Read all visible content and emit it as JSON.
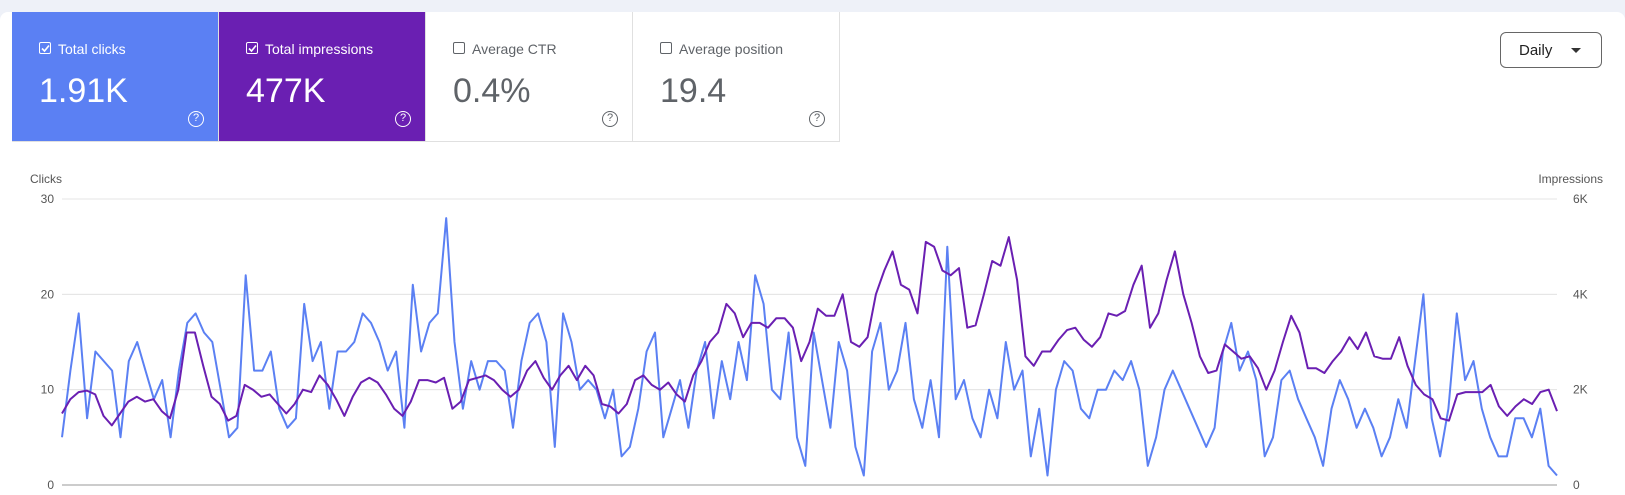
{
  "cards": [
    {
      "label": "Total clicks",
      "value": "1.91K",
      "checked": true,
      "color": "#5b80f3"
    },
    {
      "label": "Total impressions",
      "value": "477K",
      "checked": true,
      "color": "#6a1fb2"
    },
    {
      "label": "Average CTR",
      "value": "0.4%",
      "checked": false,
      "color": "#ffffff"
    },
    {
      "label": "Average position",
      "value": "19.4",
      "checked": false,
      "color": "#ffffff"
    }
  ],
  "granularity": "Daily",
  "chart_data": {
    "type": "line",
    "ylabel": "Clicks",
    "y2label": "Impressions",
    "ylim": [
      0,
      30
    ],
    "yticks": [
      0,
      10,
      20,
      30
    ],
    "y2lim": [
      0,
      6000
    ],
    "y2ticks": [
      0,
      {
        "value": 2000,
        "label": "2K"
      },
      {
        "value": 4000,
        "label": "4K"
      },
      {
        "value": 6000,
        "label": "6K"
      }
    ],
    "grid": true,
    "series": [
      {
        "color": "#5b80f3",
        "values": [
          5,
          12,
          18,
          7,
          14,
          13,
          12,
          5,
          13,
          15,
          12,
          9,
          11,
          5,
          12,
          17,
          18,
          16,
          15,
          10,
          5,
          6,
          22,
          12,
          12,
          14,
          8,
          6,
          7,
          19,
          13,
          15,
          8,
          14,
          14,
          15,
          18,
          17,
          15,
          12,
          14,
          6,
          21,
          14,
          17,
          18,
          28,
          15,
          8,
          13,
          10,
          13,
          13,
          12,
          6,
          13,
          17,
          18,
          15,
          4,
          18,
          15,
          10,
          11,
          10,
          7,
          10,
          3,
          4,
          8,
          14,
          16,
          5,
          8,
          11,
          6,
          12,
          15,
          7,
          13,
          9,
          15,
          11,
          22,
          19,
          10,
          9,
          16,
          5,
          2,
          16,
          11,
          6,
          15,
          12,
          4,
          1,
          14,
          17,
          10,
          12,
          17,
          9,
          6,
          11,
          5,
          25,
          9,
          11,
          7,
          5,
          10,
          7,
          15,
          10,
          12,
          3,
          8,
          1,
          10,
          13,
          12,
          8,
          7,
          10,
          10,
          12,
          11,
          13,
          10,
          2,
          5,
          10,
          12,
          10,
          8,
          6,
          4,
          6,
          14,
          17,
          12,
          14,
          11,
          3,
          5,
          11,
          12,
          9,
          7,
          5,
          2,
          8,
          11,
          9,
          6,
          8,
          6,
          3,
          5,
          9,
          6,
          13,
          20,
          7,
          3,
          8,
          18,
          11,
          13,
          8,
          5,
          3,
          3,
          7,
          7,
          5,
          8,
          2,
          1
        ]
      },
      {
        "color": "#6a1fb2",
        "axis": "y2",
        "values": [
          1500,
          1800,
          1950,
          1980,
          1900,
          1450,
          1250,
          1500,
          1750,
          1850,
          1750,
          1800,
          1550,
          1400,
          2000,
          3200,
          3200,
          2500,
          1850,
          1700,
          1350,
          1450,
          2100,
          2000,
          1850,
          1900,
          1700,
          1500,
          1700,
          2000,
          1950,
          2300,
          2100,
          1800,
          1450,
          1850,
          2150,
          2250,
          2150,
          1900,
          1600,
          1450,
          1750,
          2200,
          2200,
          2150,
          2250,
          1600,
          1750,
          2200,
          2250,
          2300,
          2200,
          2000,
          1850,
          2000,
          2400,
          2600,
          2250,
          2000,
          2300,
          2500,
          2200,
          2500,
          2300,
          1700,
          1650,
          1500,
          1700,
          2200,
          2300,
          2100,
          2000,
          2150,
          1900,
          1750,
          2300,
          2600,
          3000,
          3200,
          3800,
          3600,
          3100,
          3400,
          3400,
          3300,
          3500,
          3500,
          3300,
          2600,
          3000,
          3700,
          3550,
          3550,
          4000,
          3000,
          2900,
          3100,
          4000,
          4500,
          4900,
          4200,
          4100,
          3600,
          5100,
          5000,
          4500,
          4400,
          4550,
          3300,
          3350,
          4000,
          4700,
          4600,
          5200,
          4300,
          2700,
          2500,
          2800,
          2800,
          3050,
          3250,
          3300,
          3050,
          2900,
          3100,
          3600,
          3550,
          3650,
          4200,
          4600,
          3300,
          3600,
          4300,
          4900,
          4000,
          3400,
          2700,
          2350,
          2400,
          2950,
          2800,
          2650,
          2700,
          2450,
          2000,
          2400,
          3000,
          3550,
          3200,
          2450,
          2450,
          2350,
          2600,
          2800,
          3100,
          2850,
          3200,
          2700,
          2650,
          2650,
          3100,
          2500,
          2100,
          1900,
          1800,
          1400,
          1350,
          1900,
          1950,
          1950,
          1950,
          2100,
          1650,
          1450,
          1650,
          1800,
          1700,
          1950,
          2000,
          1550
        ]
      }
    ]
  }
}
